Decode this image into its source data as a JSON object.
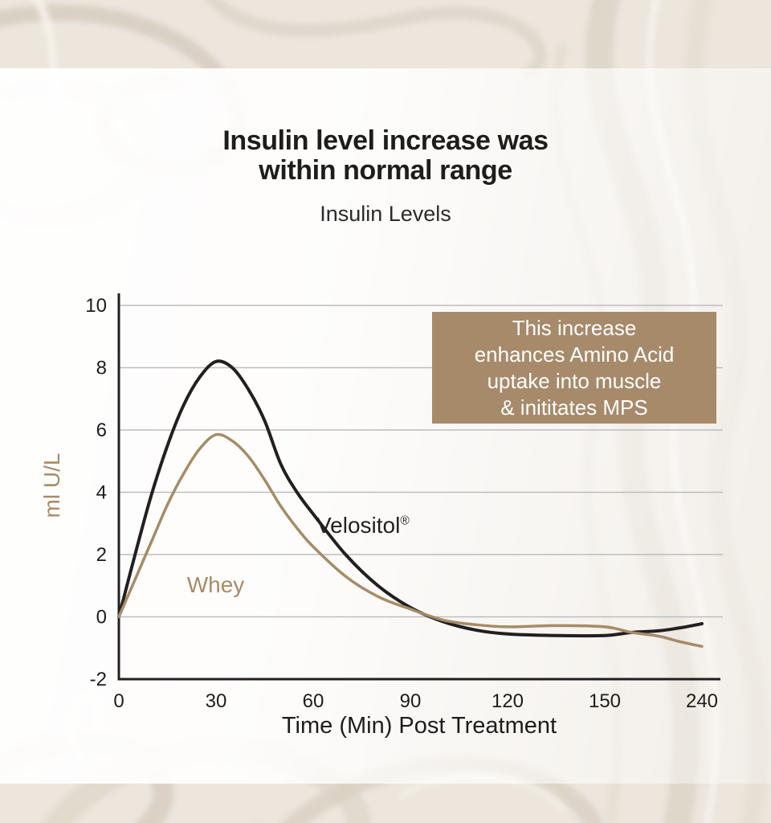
{
  "header": {
    "title_line1": "Insulin level increase was",
    "title_line2": "within normal range",
    "subtitle": "Insulin Levels"
  },
  "callout": {
    "lines": [
      "This increase",
      "enhances Amino Acid",
      "uptake into muscle",
      "& inititates MPS"
    ],
    "bg_color": "#a68a6a",
    "text_color": "#ffffff"
  },
  "chart_data": {
    "type": "line",
    "title": "Insulin Levels",
    "xlabel": "Time (Min) Post Treatment",
    "ylabel": "ml U/L",
    "x_ticks": [
      0,
      30,
      60,
      90,
      120,
      150,
      240
    ],
    "x_scale_note": "equal visual spacing between consecutive ticks (non-linear time axis)",
    "y_ticks": [
      10,
      8,
      6,
      4,
      2,
      0,
      -2
    ],
    "ylim": [
      -2,
      10
    ],
    "grid": true,
    "legend_position": "inline-labels-on-plot",
    "axis_color": "#231f20",
    "grid_color": "#bdbdbd",
    "tick_label_color": "#1d1d1b",
    "ylabel_color": "#a78b67",
    "series": [
      {
        "name": "Velositol",
        "mark": "®",
        "color": "#231f20",
        "peak": {
          "time": 30,
          "value": 8.2
        },
        "label_anchor": {
          "time": 61,
          "value": 3.35
        },
        "points": [
          [
            0,
            0
          ],
          [
            5,
            2.0
          ],
          [
            10,
            3.9
          ],
          [
            15,
            5.5
          ],
          [
            20,
            6.8
          ],
          [
            25,
            7.7
          ],
          [
            30,
            8.2
          ],
          [
            35,
            8.0
          ],
          [
            40,
            7.3
          ],
          [
            45,
            6.3
          ],
          [
            50,
            4.9
          ],
          [
            55,
            4.0
          ],
          [
            60,
            3.3
          ],
          [
            70,
            2.0
          ],
          [
            80,
            1.0
          ],
          [
            90,
            0.3
          ],
          [
            100,
            -0.15
          ],
          [
            110,
            -0.42
          ],
          [
            120,
            -0.55
          ],
          [
            135,
            -0.6
          ],
          [
            150,
            -0.6
          ],
          [
            175,
            -0.5
          ],
          [
            200,
            -0.45
          ],
          [
            220,
            -0.35
          ],
          [
            240,
            -0.22
          ]
        ]
      },
      {
        "name": "Whey",
        "mark": "",
        "color": "#a78b67",
        "peak": {
          "time": 30,
          "value": 5.85
        },
        "label_anchor": {
          "time": 21,
          "value": 1.43
        },
        "points": [
          [
            0,
            0
          ],
          [
            5,
            1.2
          ],
          [
            10,
            2.4
          ],
          [
            15,
            3.6
          ],
          [
            20,
            4.6
          ],
          [
            25,
            5.4
          ],
          [
            30,
            5.85
          ],
          [
            35,
            5.65
          ],
          [
            40,
            5.15
          ],
          [
            45,
            4.4
          ],
          [
            50,
            3.55
          ],
          [
            55,
            2.85
          ],
          [
            60,
            2.25
          ],
          [
            70,
            1.3
          ],
          [
            80,
            0.65
          ],
          [
            90,
            0.25
          ],
          [
            100,
            -0.1
          ],
          [
            110,
            -0.25
          ],
          [
            120,
            -0.32
          ],
          [
            135,
            -0.28
          ],
          [
            150,
            -0.32
          ],
          [
            175,
            -0.5
          ],
          [
            200,
            -0.62
          ],
          [
            220,
            -0.8
          ],
          [
            240,
            -0.95
          ]
        ]
      }
    ]
  }
}
